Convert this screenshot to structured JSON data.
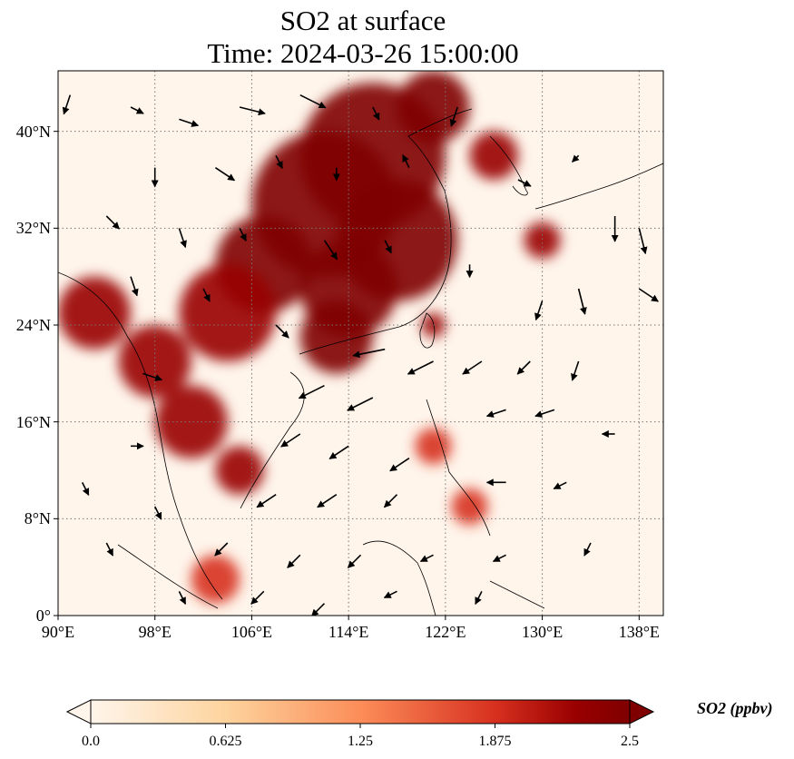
{
  "title": {
    "line1": "SO2 at surface",
    "line2": "Time: 2024-03-26 15:00:00"
  },
  "axes": {
    "x_ticks": [
      {
        "lon": 90,
        "label": "90°E"
      },
      {
        "lon": 98,
        "label": "98°E"
      },
      {
        "lon": 106,
        "label": "106°E"
      },
      {
        "lon": 114,
        "label": "114°E"
      },
      {
        "lon": 122,
        "label": "122°E"
      },
      {
        "lon": 130,
        "label": "130°E"
      },
      {
        "lon": 138,
        "label": "138°E"
      }
    ],
    "y_ticks": [
      {
        "lat": 0,
        "label": "0°"
      },
      {
        "lat": 8,
        "label": "8°N"
      },
      {
        "lat": 16,
        "label": "16°N"
      },
      {
        "lat": 24,
        "label": "24°N"
      },
      {
        "lat": 32,
        "label": "32°N"
      },
      {
        "lat": 40,
        "label": "40°N"
      }
    ],
    "lon_range": [
      90,
      140
    ],
    "lat_range": [
      0,
      45
    ]
  },
  "colorbar": {
    "label": "SO2 (ppbv)",
    "ticks": [
      "0.0",
      "0.625",
      "1.25",
      "1.875",
      "2.5"
    ],
    "range": [
      0,
      2.5
    ],
    "colormap": [
      "#fff5eb",
      "#fdd49e",
      "#fc8d59",
      "#d7301f",
      "#990000",
      "#7f0000"
    ]
  },
  "map": {
    "gridlines": "dotted",
    "field": "SO2 concentration (ppbv)",
    "hotspots": [
      {
        "lon": 116,
        "lat": 38,
        "radius": 6,
        "value": 2.5
      },
      {
        "lon": 112,
        "lat": 34,
        "radius": 6,
        "value": 2.5
      },
      {
        "lon": 118,
        "lat": 31,
        "radius": 5,
        "value": 2.5
      },
      {
        "lon": 107,
        "lat": 29,
        "radius": 4,
        "value": 2.4
      },
      {
        "lon": 114,
        "lat": 27,
        "radius": 4,
        "value": 2.3
      },
      {
        "lon": 113,
        "lat": 23,
        "radius": 3,
        "value": 2.5
      },
      {
        "lon": 104,
        "lat": 25,
        "radius": 4,
        "value": 2.2
      },
      {
        "lon": 98,
        "lat": 21,
        "radius": 3,
        "value": 2.2
      },
      {
        "lon": 101,
        "lat": 16,
        "radius": 3,
        "value": 2.0
      },
      {
        "lon": 93,
        "lat": 25,
        "radius": 3,
        "value": 2.1
      },
      {
        "lon": 105,
        "lat": 12,
        "radius": 2,
        "value": 1.9
      },
      {
        "lon": 126,
        "lat": 38,
        "radius": 2,
        "value": 2.2
      },
      {
        "lon": 121,
        "lat": 42,
        "radius": 3,
        "value": 2.3
      },
      {
        "lon": 130,
        "lat": 31,
        "radius": 1.5,
        "value": 2.1
      },
      {
        "lon": 121,
        "lat": 24,
        "radius": 1,
        "value": 2.2
      },
      {
        "lon": 121,
        "lat": 14,
        "radius": 1.5,
        "value": 1.5
      },
      {
        "lon": 124,
        "lat": 9,
        "radius": 1.5,
        "value": 1.4
      },
      {
        "lon": 103,
        "lat": 3,
        "radius": 2,
        "value": 1.5
      }
    ],
    "wind_vectors": [
      {
        "lon": 91,
        "lat": 43,
        "u": -0.5,
        "v": -1.5
      },
      {
        "lon": 96,
        "lat": 42,
        "u": 1,
        "v": -0.5
      },
      {
        "lon": 100,
        "lat": 41,
        "u": 1.5,
        "v": -0.5
      },
      {
        "lon": 105,
        "lat": 42,
        "u": 2,
        "v": -0.5
      },
      {
        "lon": 110,
        "lat": 43,
        "u": 2,
        "v": -1
      },
      {
        "lon": 116,
        "lat": 42,
        "u": 0.5,
        "v": -1
      },
      {
        "lon": 123,
        "lat": 42,
        "u": -0.5,
        "v": -1.5
      },
      {
        "lon": 98,
        "lat": 37,
        "u": 0,
        "v": -1.5
      },
      {
        "lon": 103,
        "lat": 37,
        "u": 1.5,
        "v": -1
      },
      {
        "lon": 108,
        "lat": 38,
        "u": 0.5,
        "v": -1
      },
      {
        "lon": 113,
        "lat": 37,
        "u": 0,
        "v": -1
      },
      {
        "lon": 119,
        "lat": 37,
        "u": -0.5,
        "v": 1
      },
      {
        "lon": 94,
        "lat": 33,
        "u": 1,
        "v": -1
      },
      {
        "lon": 100,
        "lat": 32,
        "u": 0.5,
        "v": -1.5
      },
      {
        "lon": 105,
        "lat": 32,
        "u": 0.5,
        "v": -1
      },
      {
        "lon": 112,
        "lat": 31,
        "u": 1,
        "v": -1.5
      },
      {
        "lon": 117,
        "lat": 31,
        "u": 0.5,
        "v": -1
      },
      {
        "lon": 124,
        "lat": 29,
        "u": 0,
        "v": -1
      },
      {
        "lon": 128,
        "lat": 36,
        "u": 1,
        "v": -0.5
      },
      {
        "lon": 133,
        "lat": 38,
        "u": -0.5,
        "v": -0.5
      },
      {
        "lon": 136,
        "lat": 33,
        "u": 0,
        "v": -2
      },
      {
        "lon": 138,
        "lat": 32,
        "u": 0.5,
        "v": -2
      },
      {
        "lon": 138,
        "lat": 27,
        "u": 1.5,
        "v": -1
      },
      {
        "lon": 133,
        "lat": 27,
        "u": 0.5,
        "v": -2
      },
      {
        "lon": 130,
        "lat": 26,
        "u": -0.5,
        "v": -1.5
      },
      {
        "lon": 96,
        "lat": 28,
        "u": 0.5,
        "v": -1.5
      },
      {
        "lon": 102,
        "lat": 27,
        "u": 0.5,
        "v": -1
      },
      {
        "lon": 108,
        "lat": 24,
        "u": 1,
        "v": -1
      },
      {
        "lon": 117,
        "lat": 22,
        "u": -2.5,
        "v": -0.5
      },
      {
        "lon": 121,
        "lat": 21,
        "u": -2,
        "v": -1
      },
      {
        "lon": 125,
        "lat": 21,
        "u": -1.5,
        "v": -1
      },
      {
        "lon": 129,
        "lat": 21,
        "u": -1,
        "v": -1
      },
      {
        "lon": 133,
        "lat": 21,
        "u": -0.5,
        "v": -1.5
      },
      {
        "lon": 97,
        "lat": 20,
        "u": 1.5,
        "v": -0.5
      },
      {
        "lon": 112,
        "lat": 19,
        "u": -2,
        "v": -1
      },
      {
        "lon": 116,
        "lat": 18,
        "u": -2,
        "v": -1
      },
      {
        "lon": 127,
        "lat": 17,
        "u": -1.5,
        "v": -0.5
      },
      {
        "lon": 131,
        "lat": 17,
        "u": -1.5,
        "v": -0.5
      },
      {
        "lon": 136,
        "lat": 15,
        "u": -1,
        "v": 0
      },
      {
        "lon": 110,
        "lat": 15,
        "u": -1.5,
        "v": -1
      },
      {
        "lon": 114,
        "lat": 14,
        "u": -1.5,
        "v": -1
      },
      {
        "lon": 119,
        "lat": 13,
        "u": -1.5,
        "v": -1
      },
      {
        "lon": 96,
        "lat": 14,
        "u": 1,
        "v": 0
      },
      {
        "lon": 92,
        "lat": 11,
        "u": 0.5,
        "v": -1
      },
      {
        "lon": 98,
        "lat": 9,
        "u": 0.5,
        "v": -1
      },
      {
        "lon": 108,
        "lat": 10,
        "u": -1.5,
        "v": -1
      },
      {
        "lon": 113,
        "lat": 10,
        "u": -1.5,
        "v": -1
      },
      {
        "lon": 118,
        "lat": 10,
        "u": -1,
        "v": -1
      },
      {
        "lon": 127,
        "lat": 11,
        "u": -1.5,
        "v": 0
      },
      {
        "lon": 132,
        "lat": 11,
        "u": -1,
        "v": -0.5
      },
      {
        "lon": 94,
        "lat": 6,
        "u": 0.5,
        "v": -1
      },
      {
        "lon": 104,
        "lat": 6,
        "u": -1,
        "v": -1
      },
      {
        "lon": 110,
        "lat": 5,
        "u": -1,
        "v": -1
      },
      {
        "lon": 115,
        "lat": 5,
        "u": -1,
        "v": -1
      },
      {
        "lon": 121,
        "lat": 5,
        "u": -1,
        "v": -0.5
      },
      {
        "lon": 127,
        "lat": 5,
        "u": -1,
        "v": -0.5
      },
      {
        "lon": 134,
        "lat": 6,
        "u": -0.5,
        "v": -1
      },
      {
        "lon": 100,
        "lat": 2,
        "u": 0.5,
        "v": -1
      },
      {
        "lon": 107,
        "lat": 2,
        "u": -1,
        "v": -1
      },
      {
        "lon": 112,
        "lat": 1,
        "u": -1,
        "v": -1
      },
      {
        "lon": 118,
        "lat": 2,
        "u": -1,
        "v": -0.5
      },
      {
        "lon": 125,
        "lat": 2,
        "u": -0.5,
        "v": -1
      }
    ]
  }
}
